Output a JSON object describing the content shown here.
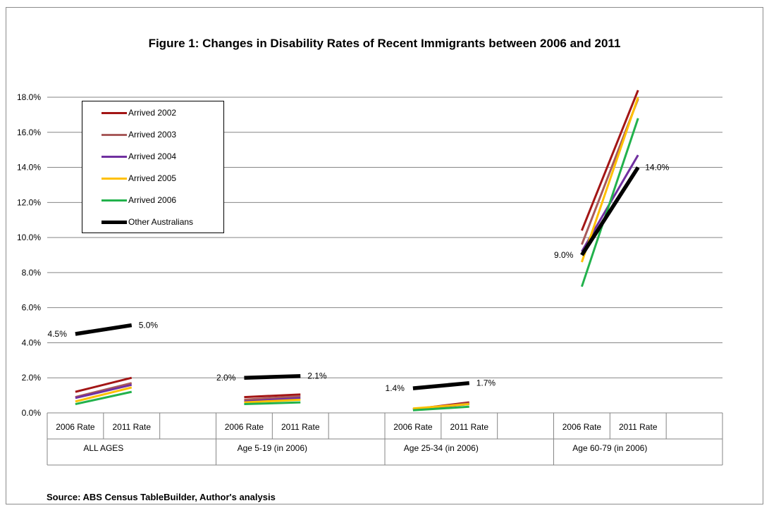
{
  "title": "Figure 1: Changes in Disability Rates of Recent Immigrants between 2006 and 2011",
  "source": "Source: ABS Census TableBuilder, Author's analysis",
  "chart_data": {
    "type": "line",
    "title": "Figure 1: Changes in Disability Rates of Recent Immigrants between 2006 and 2011",
    "xlabel": "",
    "ylabel": "",
    "ylim": [
      0,
      18
    ],
    "yticks": [
      "0.0%",
      "2.0%",
      "4.0%",
      "6.0%",
      "8.0%",
      "10.0%",
      "12.0%",
      "14.0%",
      "16.0%",
      "18.0%"
    ],
    "grid": true,
    "legend_position": "top-left",
    "groups": [
      {
        "label": "ALL AGES",
        "categories": [
          "2006 Rate",
          "2011 Rate"
        ]
      },
      {
        "label": "Age 5-19 (in 2006)",
        "categories": [
          "2006 Rate",
          "2011 Rate"
        ]
      },
      {
        "label": "Age 25-34 (in 2006)",
        "categories": [
          "2006 Rate",
          "2011 Rate"
        ]
      },
      {
        "label": "Age 60-79 (in 2006)",
        "categories": [
          "2006 Rate",
          "2011 Rate"
        ]
      }
    ],
    "series": [
      {
        "name": "Arrived 2002",
        "color": "#a31515",
        "width": 3,
        "values": [
          [
            1.2,
            2.0
          ],
          [
            0.9,
            1.05
          ],
          [
            0.2,
            0.6
          ],
          [
            10.4,
            18.4
          ]
        ]
      },
      {
        "name": "Arrived 2003",
        "color": "#a85a5a",
        "width": 3,
        "values": [
          [
            0.9,
            1.7
          ],
          [
            0.75,
            0.95
          ],
          [
            0.2,
            0.55
          ],
          [
            9.6,
            17.9
          ]
        ]
      },
      {
        "name": "Arrived 2004",
        "color": "#7030a0",
        "width": 3,
        "values": [
          [
            0.85,
            1.6
          ],
          [
            0.65,
            0.85
          ],
          [
            0.2,
            0.5
          ],
          [
            9.2,
            14.7
          ]
        ]
      },
      {
        "name": "Arrived 2005",
        "color": "#ffc000",
        "width": 3,
        "values": [
          [
            0.65,
            1.45
          ],
          [
            0.6,
            0.75
          ],
          [
            0.25,
            0.5
          ],
          [
            8.6,
            18.0
          ]
        ]
      },
      {
        "name": "Arrived 2006",
        "color": "#22b24c",
        "width": 3,
        "values": [
          [
            0.5,
            1.2
          ],
          [
            0.5,
            0.6
          ],
          [
            0.15,
            0.35
          ],
          [
            7.2,
            16.8
          ]
        ]
      },
      {
        "name": "Other Australians",
        "color": "#000000",
        "width": 5.5,
        "values": [
          [
            4.5,
            5.0
          ],
          [
            2.0,
            2.1
          ],
          [
            1.4,
            1.7
          ],
          [
            9.0,
            14.0
          ]
        ]
      }
    ],
    "data_labels": [
      {
        "group": 0,
        "point": 0,
        "text": "4.5%"
      },
      {
        "group": 0,
        "point": 1,
        "text": "5.0%"
      },
      {
        "group": 1,
        "point": 0,
        "text": "2.0%"
      },
      {
        "group": 1,
        "point": 1,
        "text": "2.1%"
      },
      {
        "group": 2,
        "point": 0,
        "text": "1.4%"
      },
      {
        "group": 2,
        "point": 1,
        "text": "1.7%"
      },
      {
        "group": 3,
        "point": 0,
        "text": "9.0%"
      },
      {
        "group": 3,
        "point": 1,
        "text": "14.0%"
      }
    ]
  }
}
